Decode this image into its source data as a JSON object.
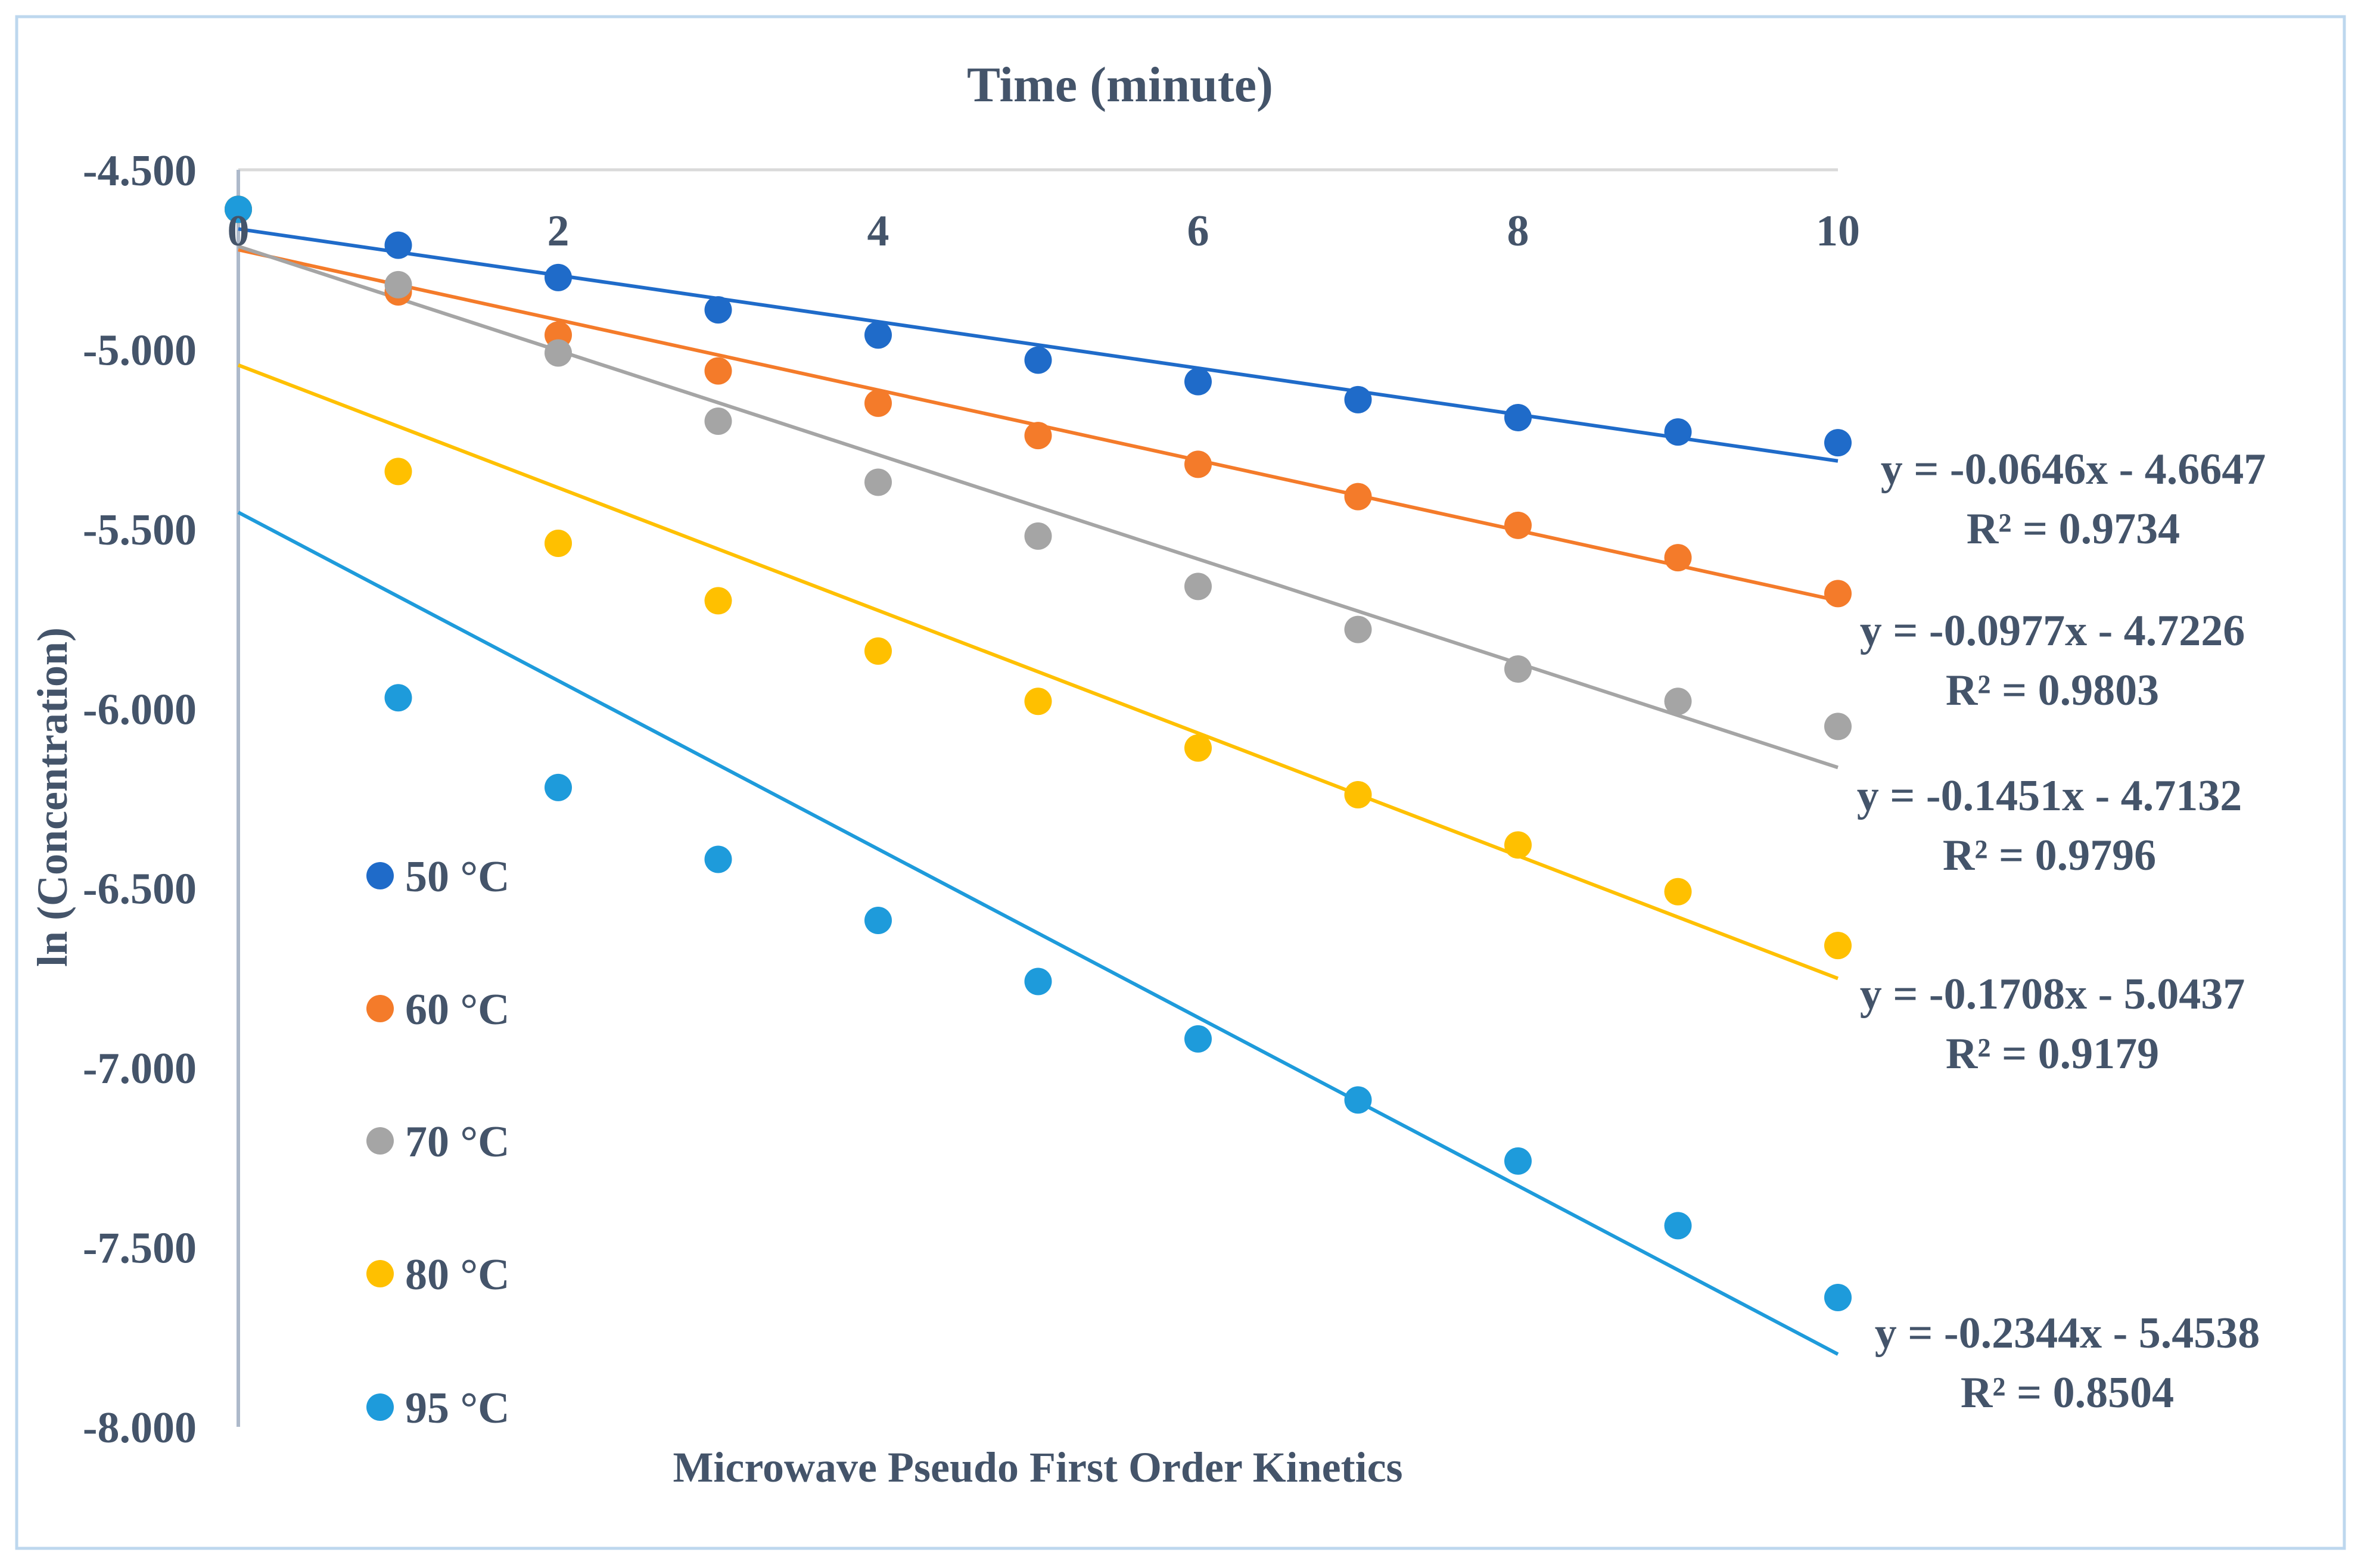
{
  "chart_data": {
    "type": "scatter",
    "title": "Time (minute)",
    "xlabel": "Microwave Pseudo First Order Kinetics",
    "ylabel": "ln (Concentration)",
    "xlim": [
      0,
      10
    ],
    "ylim": [
      -8.0,
      -4.5
    ],
    "x_ticks": [
      0,
      2,
      4,
      6,
      8,
      10
    ],
    "x_tick_labels": [
      "0",
      "2",
      "4",
      "6",
      "8",
      "10"
    ],
    "y_ticks": [
      -4.5,
      -5.0,
      -5.5,
      -6.0,
      -6.5,
      -7.0,
      -7.5,
      -8.0
    ],
    "y_tick_labels": [
      "-4.500",
      "-5.000",
      "-5.500",
      "-6.000",
      "-6.500",
      "-7.000",
      "-7.500",
      "-8.000"
    ],
    "x": [
      0,
      1,
      2,
      3,
      4,
      5,
      6,
      7,
      8,
      9,
      10
    ],
    "legend_position": "left",
    "series": [
      {
        "name": "50 °C",
        "color": "#1F6BC9",
        "values": [
          -4.61,
          -4.71,
          -4.8,
          -4.89,
          -4.96,
          -5.03,
          -5.09,
          -5.14,
          -5.19,
          -5.23,
          -5.26
        ],
        "fit": {
          "slope": -0.0646,
          "intercept": -4.6647
        },
        "equation": "y = -0.0646x - 4.6647",
        "r2": "R² = 0.9734"
      },
      {
        "name": "60 °C",
        "color": "#F47B2A",
        "values": [
          -4.61,
          -4.84,
          -4.96,
          -5.06,
          -5.15,
          -5.24,
          -5.32,
          -5.41,
          -5.49,
          -5.58,
          -5.68
        ],
        "fit": {
          "slope": -0.0977,
          "intercept": -4.7226
        },
        "equation": "y = -0.0977x - 4.7226",
        "r2": "R² = 0.9803"
      },
      {
        "name": "70 °C",
        "color": "#A5A5A5",
        "values": [
          -4.61,
          -4.82,
          -5.01,
          -5.2,
          -5.37,
          -5.52,
          -5.66,
          -5.78,
          -5.89,
          -5.98,
          -6.05
        ],
        "fit": {
          "slope": -0.1451,
          "intercept": -4.7132
        },
        "equation": "y = -0.1451x - 4.7132",
        "r2": "R² = 0.9796"
      },
      {
        "name": "80 °C",
        "color": "#FFC000",
        "values": [
          -4.61,
          -5.34,
          -5.54,
          -5.7,
          -5.84,
          -5.98,
          -6.11,
          -6.24,
          -6.38,
          -6.51,
          -6.66
        ],
        "fit": {
          "slope": -0.1708,
          "intercept": -5.0437
        },
        "equation": "y = -0.1708x - 5.0437",
        "r2": "R² = 0.9179"
      },
      {
        "name": "95 °C",
        "color": "#1E9BDB",
        "values": [
          -4.61,
          -5.97,
          -6.22,
          -6.42,
          -6.59,
          -6.76,
          -6.92,
          -7.09,
          -7.26,
          -7.44,
          -7.64
        ],
        "fit": {
          "slope": -0.2344,
          "intercept": -5.4538
        },
        "equation": "y = -0.2344x - 5.4538",
        "r2": "R² = 0.8504"
      }
    ]
  }
}
